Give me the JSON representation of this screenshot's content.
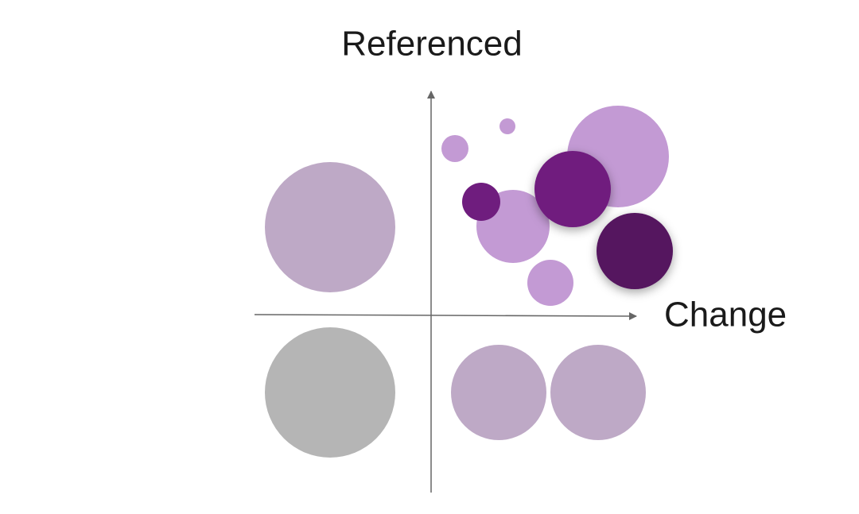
{
  "axes": {
    "y_label": "Referenced",
    "x_label": "Change"
  }
}
